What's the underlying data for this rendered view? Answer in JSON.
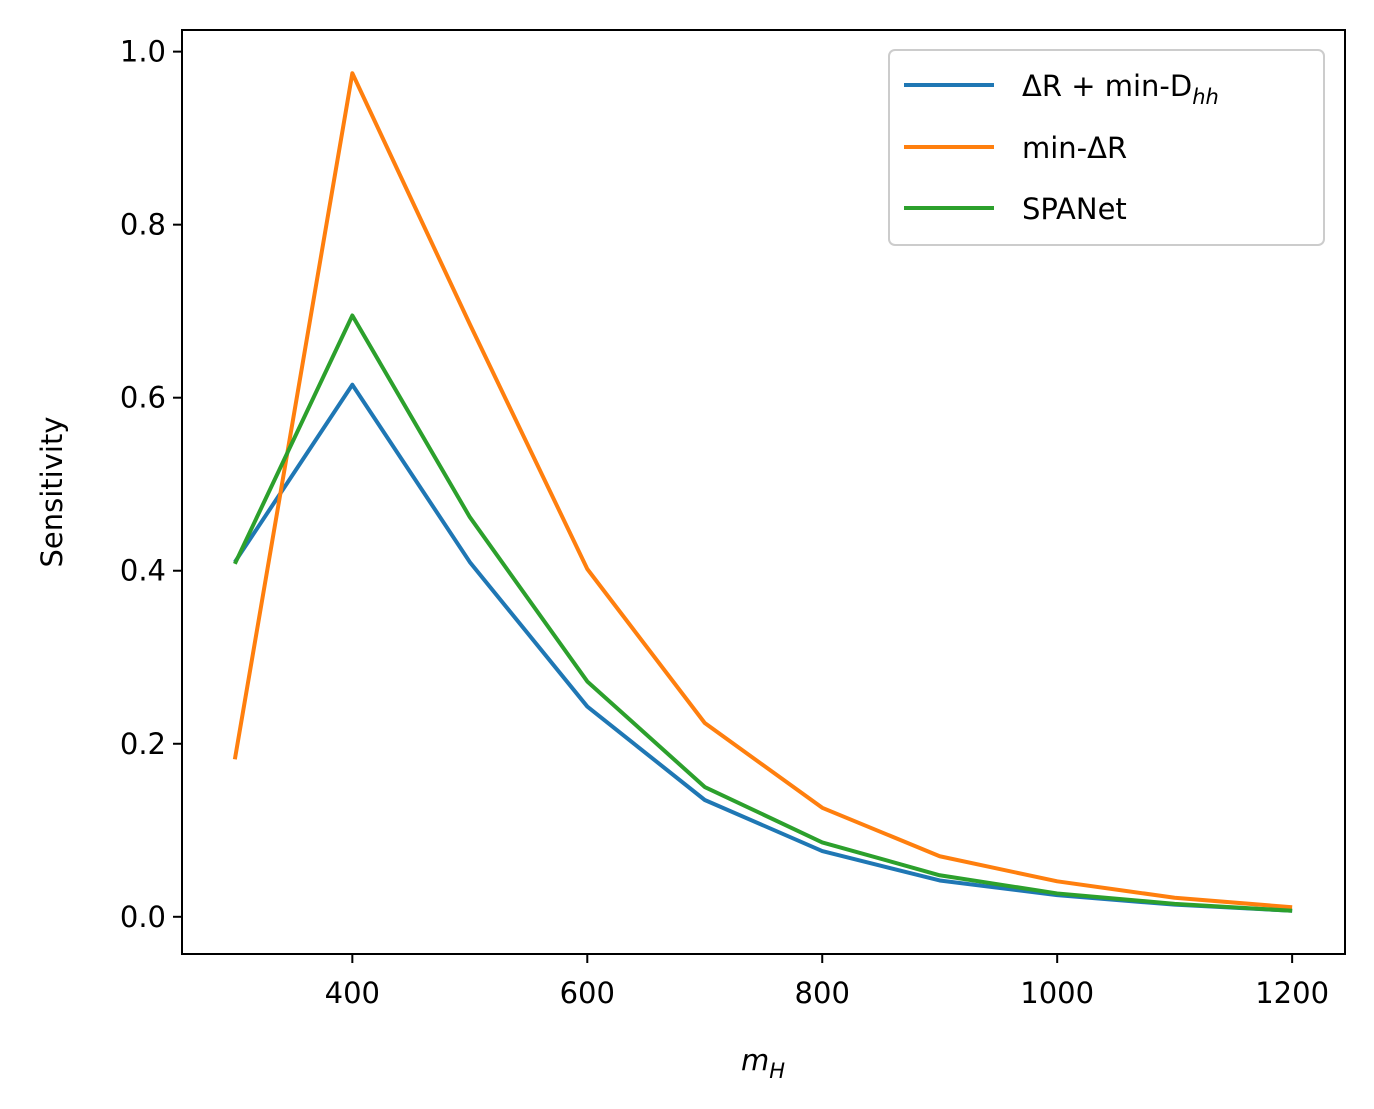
{
  "chart_data": {
    "type": "line",
    "x": [
      300,
      400,
      500,
      600,
      700,
      800,
      900,
      1000,
      1100,
      1200
    ],
    "series": [
      {
        "name": "ΔR +  min-D",
        "name_sub": "hh",
        "color": "#1f77b4",
        "values": [
          0.41,
          0.615,
          0.41,
          0.243,
          0.135,
          0.076,
          0.042,
          0.025,
          0.014,
          0.007
        ]
      },
      {
        "name": "min-ΔR",
        "color": "#ff7f0e",
        "values": [
          0.182,
          0.975,
          0.685,
          0.402,
          0.224,
          0.126,
          0.07,
          0.041,
          0.022,
          0.011
        ]
      },
      {
        "name": "SPANet",
        "color": "#2ca02c",
        "values": [
          0.408,
          0.695,
          0.462,
          0.272,
          0.15,
          0.086,
          0.048,
          0.027,
          0.015,
          0.007
        ]
      }
    ],
    "xlabel": "m",
    "xlabel_sub": "H",
    "ylabel": "Sensitivity",
    "xlim": [
      255,
      1245
    ],
    "ylim": [
      -0.043,
      1.025
    ],
    "xticks": [
      400,
      600,
      800,
      1000,
      1200
    ],
    "xtick_labels": [
      "400",
      "600",
      "800",
      "1000",
      "1200"
    ],
    "yticks": [
      0.0,
      0.2,
      0.4,
      0.6,
      0.8,
      1.0
    ],
    "ytick_labels": [
      "0.0",
      "0.2",
      "0.4",
      "0.6",
      "0.8",
      "1.0"
    ],
    "grid": false,
    "legend_position": "top-right"
  }
}
